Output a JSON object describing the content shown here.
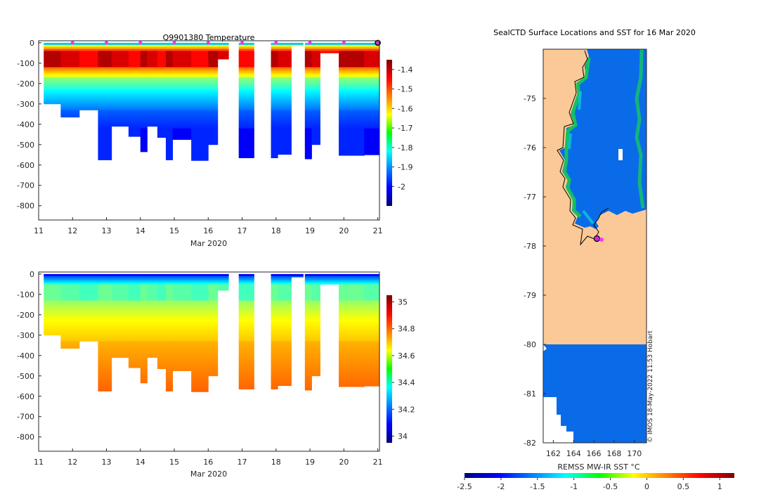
{
  "chart_data": [
    {
      "type": "heatmap",
      "name": "temperature-section",
      "title": "Q9901380  Temperature",
      "xlabel": "Mar 2020",
      "ylabel": "",
      "xlim": [
        11,
        21.05
      ],
      "ylim": [
        -870,
        10
      ],
      "x_ticks": [
        "11",
        "12",
        "13",
        "14",
        "15",
        "16",
        "17",
        "18",
        "19",
        "20",
        "21"
      ],
      "y_ticks": [
        "0",
        "-100",
        "-200",
        "-300",
        "-400",
        "-500",
        "-600",
        "-700",
        "-800"
      ],
      "colorbar": {
        "min": -2.1,
        "max": -1.35,
        "ticks": [
          "-1.4",
          "-1.5",
          "-1.6",
          "-1.7",
          "-1.8",
          "-1.9",
          "-2"
        ]
      },
      "surface_markers_x": [
        12.0,
        13.0,
        14.0,
        15.0,
        16.0,
        17.0,
        18.0,
        19.0,
        20.0
      ],
      "last_position_x": 21.0,
      "profiles": [
        {
          "x0": 11.15,
          "x1": 11.65,
          "depth": 300
        },
        {
          "x0": 11.65,
          "x1": 12.2,
          "depth": 365
        },
        {
          "x0": 12.2,
          "x1": 12.75,
          "depth": 330
        },
        {
          "x0": 12.75,
          "x1": 13.15,
          "depth": 575
        },
        {
          "x0": 13.15,
          "x1": 13.65,
          "depth": 410
        },
        {
          "x0": 13.65,
          "x1": 14.0,
          "depth": 460
        },
        {
          "x0": 14.0,
          "x1": 14.2,
          "depth": 535
        },
        {
          "x0": 14.2,
          "x1": 14.5,
          "depth": 410
        },
        {
          "x0": 14.5,
          "x1": 14.75,
          "depth": 465
        },
        {
          "x0": 14.75,
          "x1": 14.95,
          "depth": 575
        },
        {
          "x0": 14.95,
          "x1": 15.5,
          "depth": 475
        },
        {
          "x0": 15.5,
          "x1": 16.0,
          "depth": 578
        },
        {
          "x0": 16.0,
          "x1": 16.28,
          "depth": 500
        },
        {
          "x0": 16.28,
          "x1": 16.6,
          "depth": 80
        },
        {
          "x0": 16.9,
          "x1": 17.35,
          "depth": 565
        },
        {
          "x0": 17.85,
          "x1": 18.05,
          "depth": 565
        },
        {
          "x0": 18.05,
          "x1": 18.45,
          "depth": 548
        },
        {
          "x0": 18.45,
          "x1": 18.8,
          "depth": 15
        },
        {
          "x0": 18.85,
          "x1": 19.05,
          "depth": 570
        },
        {
          "x0": 19.05,
          "x1": 19.3,
          "depth": 500
        },
        {
          "x0": 19.3,
          "x1": 19.85,
          "depth": 50
        },
        {
          "x0": 19.85,
          "x1": 20.6,
          "depth": 553
        },
        {
          "x0": 20.6,
          "x1": 21.05,
          "depth": 550
        }
      ]
    },
    {
      "type": "heatmap",
      "name": "salinity-section",
      "title": "",
      "xlabel": "Mar 2020",
      "ylabel": "",
      "xlim": [
        11,
        21.05
      ],
      "ylim": [
        -870,
        10
      ],
      "x_ticks": [
        "11",
        "12",
        "13",
        "14",
        "15",
        "16",
        "17",
        "18",
        "19",
        "20",
        "21"
      ],
      "y_ticks": [
        "0",
        "-100",
        "-200",
        "-300",
        "-400",
        "-500",
        "-600",
        "-700",
        "-800"
      ],
      "colorbar": {
        "min": 33.95,
        "max": 35.05,
        "ticks": [
          "35",
          "34.8",
          "34.6",
          "34.4",
          "34.2",
          "34"
        ]
      }
    },
    {
      "type": "heatmap",
      "name": "sst-map",
      "title": "SealCTD Surface Locations and SST for 16 Mar 2020",
      "xlabel": "",
      "ylabel": "",
      "xlim": [
        161,
        171.2
      ],
      "ylim": [
        -82,
        -74
      ],
      "x_ticks": [
        "162",
        "164",
        "166",
        "168",
        "170"
      ],
      "y_ticks": [
        "-75",
        "-76",
        "-77",
        "-78",
        "-79",
        "-80",
        "-81",
        "-82"
      ],
      "colorbar": {
        "label": "REMSS MW-IR SST °C",
        "min": -2.5,
        "max": 1.2,
        "ticks": [
          "-2.5",
          "-2",
          "-1.5",
          "-1",
          "-0.5",
          "0",
          "0.5",
          "1"
        ]
      },
      "last_position": {
        "lon": 166.3,
        "lat": -77.85
      },
      "land_color": "#fbc997",
      "ocean_color": "#0a6be8"
    }
  ],
  "watermark": "© IMOS 18-May-2022 11:53 Hobart"
}
